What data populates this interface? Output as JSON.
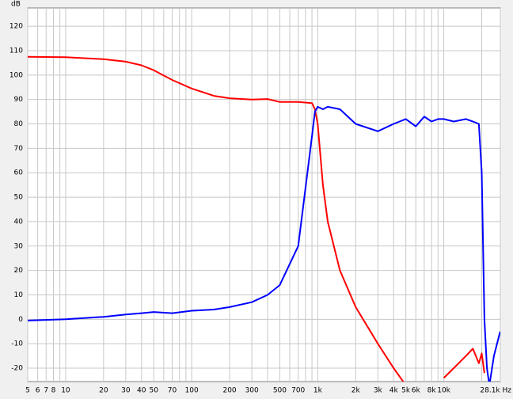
{
  "chart_data": {
    "type": "line",
    "y_label": "dB",
    "x": [
      5,
      10,
      20,
      30,
      40,
      50,
      70,
      100,
      150,
      200,
      300,
      400,
      500,
      700,
      900,
      950,
      1000,
      1100,
      1200,
      1500,
      2000,
      3000,
      4000,
      5000,
      6000,
      7000,
      8000,
      9000,
      10000,
      12000,
      15000,
      17000,
      19000,
      20000,
      21000,
      22000,
      23000,
      25000,
      28000
    ],
    "series": [
      {
        "color": "#ff0000",
        "values": [
          107.5,
          107.3,
          106.5,
          105.5,
          104,
          102,
          98,
          94.5,
          91.5,
          90.5,
          90,
          90.2,
          89,
          89,
          88.5,
          86,
          80,
          55,
          40,
          20,
          5,
          -10,
          -20,
          -27,
          null,
          null,
          null,
          null,
          -24,
          -20,
          -15,
          -12,
          -18,
          -14,
          -22,
          null,
          null,
          null,
          null
        ]
      },
      {
        "color": "#0000ff",
        "values": [
          -0.5,
          0,
          1,
          2,
          2.5,
          3,
          2.5,
          3.5,
          4,
          5,
          7,
          10,
          14,
          30,
          75,
          85,
          87,
          86,
          87,
          86,
          80,
          77,
          80,
          82,
          79,
          83,
          81,
          82,
          82,
          81,
          82,
          81,
          80,
          60,
          0,
          -20,
          -27,
          -15,
          -5
        ]
      }
    ],
    "xscale": "log",
    "xlim": [
      5,
      28100
    ],
    "xticks": [
      5,
      6,
      7,
      8,
      10,
      20,
      30,
      40,
      50,
      70,
      100,
      200,
      300,
      500,
      700,
      {
        "value": 1000,
        "label": "1k"
      },
      {
        "value": 2000,
        "label": "2k"
      },
      {
        "value": 3000,
        "label": "3k"
      },
      {
        "value": 4000,
        "label": "4k"
      },
      {
        "value": 5000,
        "label": "5k"
      },
      {
        "value": 6000,
        "label": "6k"
      },
      {
        "value": 8000,
        "label": "8k"
      },
      {
        "value": 10000,
        "label": "10k"
      },
      {
        "value": 28100,
        "label": "28.1k Hz"
      }
    ],
    "xminor": [
      9,
      60,
      80,
      90,
      400,
      600,
      800,
      900,
      7000,
      9000,
      20000
    ],
    "ylim": [
      -25.5,
      127.5
    ],
    "yticks": [
      -20,
      -10,
      0,
      10,
      20,
      30,
      40,
      50,
      60,
      70,
      80,
      90,
      100,
      110,
      120
    ],
    "grid": true
  }
}
